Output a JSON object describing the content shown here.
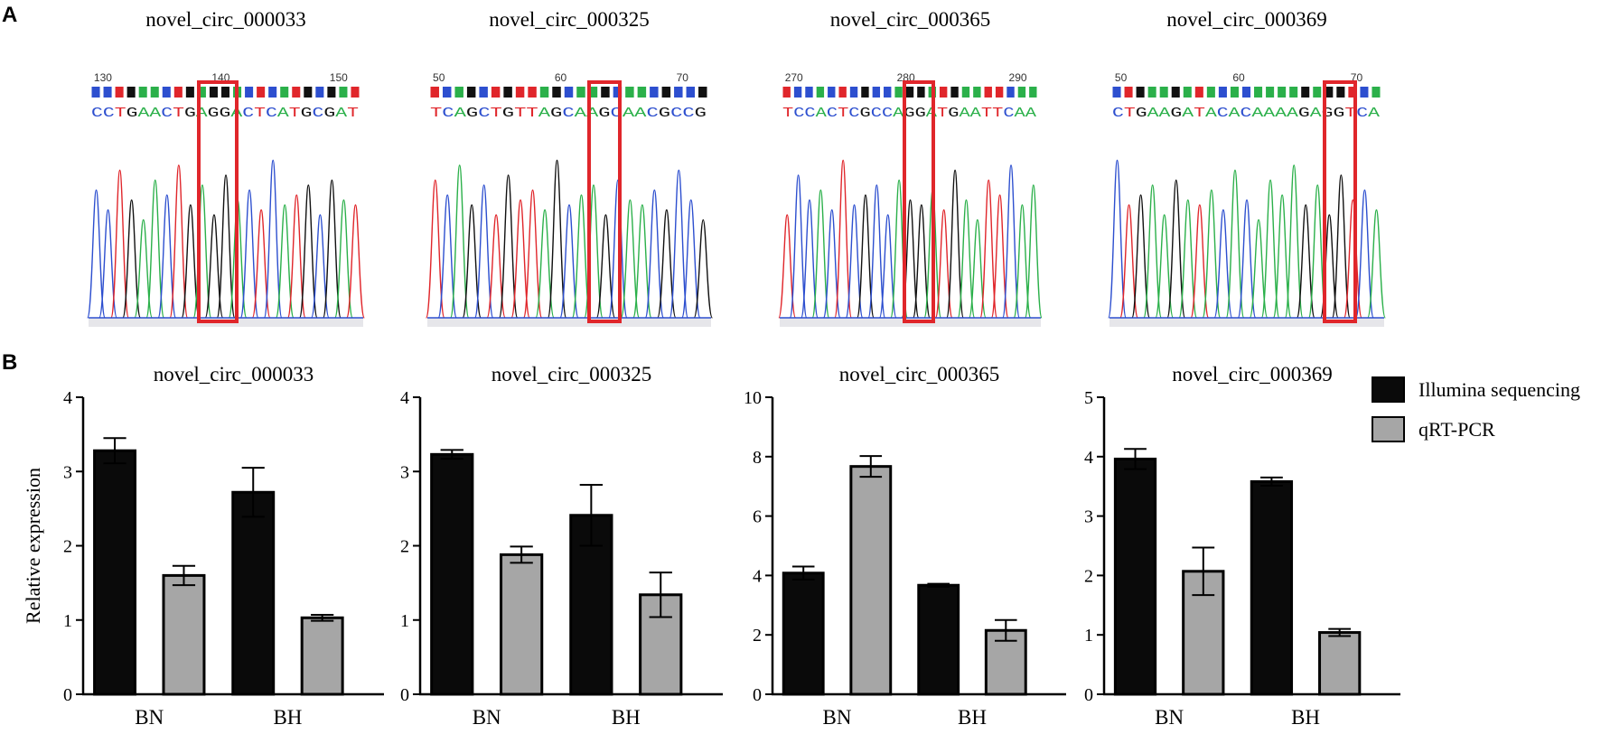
{
  "panels": {
    "a": "A",
    "b": "B"
  },
  "sequencing": {
    "tracks": [
      {
        "title": "novel_circ_000033",
        "positions": [
          "130",
          "140",
          "150"
        ],
        "bases": "CCTGAACTGAGGACTCATGCGAT"
      },
      {
        "title": "novel_circ_000325",
        "positions": [
          "50",
          "60",
          "70"
        ],
        "bases": "TCAGCTGTTAGCAAGCAACGCCG"
      },
      {
        "title": "novel_circ_000365",
        "positions": [
          "270",
          "280",
          "290"
        ],
        "bases": "TCCACTCGCCAGGATGAATTCAA"
      },
      {
        "title": "novel_circ_000369",
        "positions": [
          "50",
          "60",
          "70"
        ],
        "bases": "CTGAAGATACACAAAAGAGGTCA"
      }
    ]
  },
  "colors": {
    "illumina": "#0a0a0a",
    "qrtpcr": "#a6a6a6",
    "highlight": "#e0262b",
    "A": "#2bb04a",
    "C": "#2d4fcf",
    "G": "#111111",
    "T": "#e0262b"
  },
  "legend": {
    "illumina": "Illumina sequencing",
    "qrtpcr": "qRT-PCR"
  },
  "chart_data": [
    {
      "type": "bar",
      "title": "novel_circ_000033",
      "ylabel": "Relative expression",
      "categories": [
        "BN",
        "BH"
      ],
      "ylim": [
        0,
        4
      ],
      "yticks": [
        "0",
        "1",
        "2",
        "3",
        "4"
      ],
      "series": [
        {
          "name": "Illumina sequencing",
          "values": [
            3.28,
            2.72
          ],
          "errors": [
            0.17,
            0.33
          ]
        },
        {
          "name": "qRT-PCR",
          "values": [
            1.6,
            1.03
          ],
          "errors": [
            0.13,
            0.04
          ]
        }
      ]
    },
    {
      "type": "bar",
      "title": "novel_circ_000325",
      "categories": [
        "BN",
        "BH"
      ],
      "ylim": [
        0,
        4
      ],
      "yticks": [
        "0",
        "1",
        "2",
        "3",
        "4"
      ],
      "series": [
        {
          "name": "Illumina sequencing",
          "values": [
            3.23,
            2.41
          ],
          "errors": [
            0.06,
            0.41
          ]
        },
        {
          "name": "qRT-PCR",
          "values": [
            1.88,
            1.34
          ],
          "errors": [
            0.11,
            0.3
          ]
        }
      ]
    },
    {
      "type": "bar",
      "title": "novel_circ_000365",
      "categories": [
        "BN",
        "BH"
      ],
      "ylim": [
        0,
        10
      ],
      "yticks": [
        "0",
        "2",
        "4",
        "6",
        "8",
        "10"
      ],
      "series": [
        {
          "name": "Illumina sequencing",
          "values": [
            4.08,
            3.67
          ],
          "errors": [
            0.22,
            0.05
          ]
        },
        {
          "name": "qRT-PCR",
          "values": [
            7.67,
            2.15
          ],
          "errors": [
            0.35,
            0.35
          ]
        }
      ]
    },
    {
      "type": "bar",
      "title": "novel_circ_000369",
      "categories": [
        "BN",
        "BH"
      ],
      "ylim": [
        0,
        5
      ],
      "yticks": [
        "0",
        "1",
        "2",
        "3",
        "4",
        "5"
      ],
      "series": [
        {
          "name": "Illumina sequencing",
          "values": [
            3.96,
            3.58
          ],
          "errors": [
            0.17,
            0.07
          ]
        },
        {
          "name": "qRT-PCR",
          "values": [
            2.07,
            1.04
          ],
          "errors": [
            0.4,
            0.06
          ]
        }
      ]
    }
  ]
}
